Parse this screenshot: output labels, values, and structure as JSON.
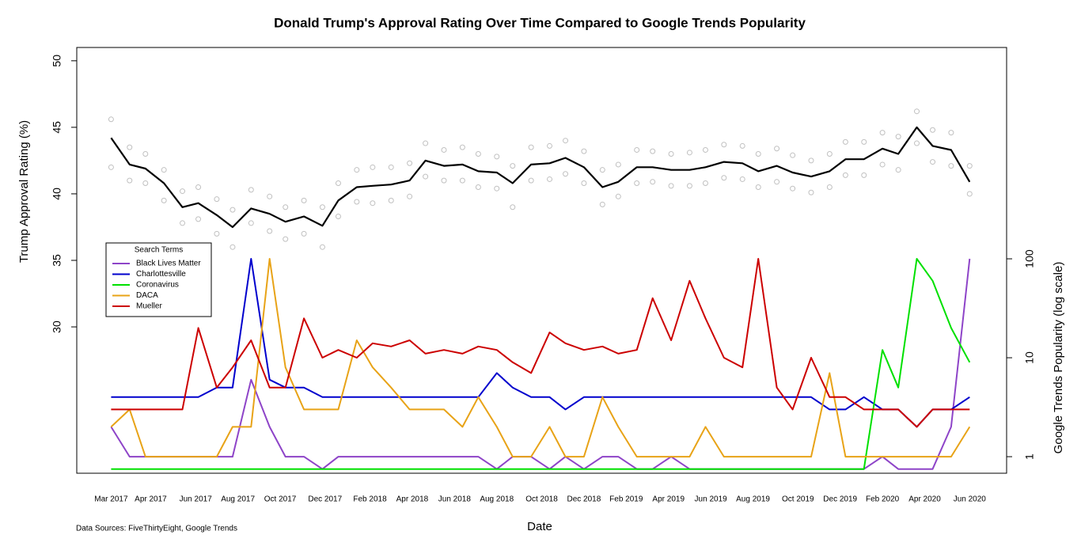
{
  "chart_data": {
    "type": "line",
    "title": "Donald Trump's Approval Rating Over Time Compared to Google Trends Popularity",
    "ylabel": "Trump Approval Rating (%)",
    "y2label": "Google Trends Popularity (log scale)",
    "xlabel": "Date",
    "source": "Data Sources: FiveThirtyEight, Google Trends",
    "legend_title": "Search Terms",
    "legend": "left",
    "xlim": [
      2017.04,
      2020.56
    ],
    "ylim": [
      19,
      51
    ],
    "y2lim": [
      0.68,
      13680
    ],
    "y2log": true,
    "yticks": [
      30,
      35,
      40,
      45,
      50
    ],
    "y2ticks": [
      1,
      10,
      100
    ],
    "xticks": [
      {
        "value": 2017.17,
        "label": "Mar 2017"
      },
      {
        "value": 2017.32,
        "label": "Apr 2017"
      },
      {
        "value": 2017.49,
        "label": "Jun 2017"
      },
      {
        "value": 2017.65,
        "label": "Aug 2017"
      },
      {
        "value": 2017.81,
        "label": "Oct 2017"
      },
      {
        "value": 2017.98,
        "label": "Dec 2017"
      },
      {
        "value": 2018.15,
        "label": "Feb 2018"
      },
      {
        "value": 2018.31,
        "label": "Apr 2018"
      },
      {
        "value": 2018.47,
        "label": "Jun 2018"
      },
      {
        "value": 2018.63,
        "label": "Aug 2018"
      },
      {
        "value": 2018.8,
        "label": "Oct 2018"
      },
      {
        "value": 2018.96,
        "label": "Dec 2018"
      },
      {
        "value": 2019.12,
        "label": "Feb 2019"
      },
      {
        "value": 2019.28,
        "label": "Apr 2019"
      },
      {
        "value": 2019.44,
        "label": "Jun 2019"
      },
      {
        "value": 2019.6,
        "label": "Aug 2019"
      },
      {
        "value": 2019.77,
        "label": "Oct 2019"
      },
      {
        "value": 2019.93,
        "label": "Dec 2019"
      },
      {
        "value": 2020.09,
        "label": "Feb 2020"
      },
      {
        "value": 2020.25,
        "label": "Apr 2020"
      },
      {
        "value": 2020.42,
        "label": "Jun 2020"
      }
    ],
    "x": [
      2017.17,
      2017.24,
      2017.3,
      2017.37,
      2017.44,
      2017.5,
      2017.57,
      2017.63,
      2017.7,
      2017.77,
      2017.83,
      2017.9,
      2017.97,
      2018.03,
      2018.1,
      2018.16,
      2018.23,
      2018.3,
      2018.36,
      2018.43,
      2018.5,
      2018.56,
      2018.63,
      2018.69,
      2018.76,
      2018.83,
      2018.89,
      2018.96,
      2019.03,
      2019.09,
      2019.16,
      2019.22,
      2019.29,
      2019.36,
      2019.42,
      2019.49,
      2019.56,
      2019.62,
      2019.69,
      2019.75,
      2019.82,
      2019.89,
      2019.95,
      2020.02,
      2020.09,
      2020.15,
      2020.22,
      2020.28,
      2020.35,
      2020.42
    ],
    "approval_line": {
      "color": "#000000",
      "axis": "y",
      "values": [
        44.2,
        42.2,
        41.9,
        40.8,
        39.0,
        39.3,
        38.4,
        37.5,
        38.9,
        38.5,
        37.9,
        38.3,
        37.6,
        39.5,
        40.5,
        40.6,
        40.7,
        41.0,
        42.5,
        42.1,
        42.2,
        41.7,
        41.6,
        40.8,
        42.2,
        42.3,
        42.7,
        42.0,
        40.5,
        40.9,
        42.0,
        42.0,
        41.8,
        41.8,
        42.0,
        42.4,
        42.3,
        41.7,
        42.1,
        41.6,
        41.3,
        41.7,
        42.6,
        42.6,
        43.4,
        43.0,
        45.0,
        43.6,
        43.3,
        40.9
      ]
    },
    "approval_points": {
      "color": "#c0c0c0",
      "axis": "y",
      "x": [
        2017.17,
        2017.17,
        2017.24,
        2017.24,
        2017.3,
        2017.3,
        2017.37,
        2017.37,
        2017.44,
        2017.44,
        2017.5,
        2017.5,
        2017.57,
        2017.57,
        2017.63,
        2017.63,
        2017.7,
        2017.7,
        2017.77,
        2017.77,
        2017.83,
        2017.83,
        2017.9,
        2017.9,
        2017.97,
        2017.97,
        2018.03,
        2018.03,
        2018.1,
        2018.1,
        2018.16,
        2018.16,
        2018.23,
        2018.23,
        2018.3,
        2018.3,
        2018.36,
        2018.36,
        2018.43,
        2018.43,
        2018.5,
        2018.5,
        2018.56,
        2018.56,
        2018.63,
        2018.63,
        2018.69,
        2018.69,
        2018.76,
        2018.76,
        2018.83,
        2018.83,
        2018.89,
        2018.89,
        2018.96,
        2018.96,
        2019.03,
        2019.03,
        2019.09,
        2019.09,
        2019.16,
        2019.16,
        2019.22,
        2019.22,
        2019.29,
        2019.29,
        2019.36,
        2019.36,
        2019.42,
        2019.42,
        2019.49,
        2019.49,
        2019.56,
        2019.56,
        2019.62,
        2019.62,
        2019.69,
        2019.69,
        2019.75,
        2019.75,
        2019.82,
        2019.82,
        2019.89,
        2019.89,
        2019.95,
        2019.95,
        2020.02,
        2020.02,
        2020.09,
        2020.09,
        2020.15,
        2020.15,
        2020.22,
        2020.22,
        2020.28,
        2020.28,
        2020.35,
        2020.35,
        2020.42,
        2020.42
      ],
      "values": [
        45.6,
        42.0,
        43.5,
        41.0,
        43.0,
        40.8,
        41.8,
        39.5,
        40.2,
        37.8,
        40.5,
        38.1,
        39.6,
        37.0,
        38.8,
        36.0,
        40.3,
        37.8,
        39.8,
        37.2,
        39.0,
        36.6,
        39.5,
        37.0,
        39.0,
        36.0,
        40.8,
        38.3,
        41.8,
        39.4,
        42.0,
        39.3,
        42.0,
        39.5,
        42.3,
        39.8,
        43.8,
        41.3,
        43.3,
        41.0,
        43.5,
        41.0,
        43.0,
        40.5,
        42.8,
        40.4,
        42.1,
        39.0,
        43.5,
        41.0,
        43.6,
        41.1,
        44.0,
        41.5,
        43.2,
        40.8,
        41.8,
        39.2,
        42.2,
        39.8,
        43.3,
        40.8,
        43.2,
        40.9,
        43.0,
        40.6,
        43.1,
        40.6,
        43.3,
        40.8,
        43.7,
        41.2,
        43.6,
        41.1,
        43.0,
        40.5,
        43.4,
        40.9,
        42.9,
        40.4,
        42.5,
        40.1,
        43.0,
        40.5,
        43.9,
        41.4,
        43.9,
        41.4,
        44.6,
        42.2,
        44.3,
        41.8,
        46.2,
        43.8,
        44.8,
        42.4,
        44.6,
        42.1,
        42.1,
        40.0
      ]
    },
    "series": [
      {
        "name": "Black Lives Matter",
        "color": "#8e44c8",
        "axis": "y2",
        "values": [
          2,
          1,
          1,
          1,
          1,
          1,
          1,
          1,
          6,
          2,
          1,
          1,
          0.75,
          1,
          1,
          1,
          1,
          1,
          1,
          1,
          1,
          1,
          0.75,
          1,
          1,
          0.75,
          1,
          0.75,
          1,
          1,
          0.75,
          0.75,
          1,
          0.75,
          0.75,
          0.75,
          0.75,
          0.75,
          0.75,
          0.75,
          0.75,
          0.75,
          0.75,
          0.75,
          1,
          0.75,
          0.75,
          0.75,
          2,
          100
        ]
      },
      {
        "name": "Charlottesville",
        "color": "#0000cd",
        "axis": "y2",
        "values": [
          4,
          4,
          4,
          4,
          4,
          4,
          5,
          5,
          100,
          6,
          5,
          5,
          4,
          4,
          4,
          4,
          4,
          4,
          4,
          4,
          4,
          4,
          7,
          5,
          4,
          4,
          3,
          4,
          4,
          4,
          4,
          4,
          4,
          4,
          4,
          4,
          4,
          4,
          4,
          4,
          4,
          3,
          3,
          4,
          3,
          3,
          2,
          3,
          3,
          4
        ]
      },
      {
        "name": "Coronavirus",
        "color": "#00e000",
        "axis": "y2",
        "values": [
          0.75,
          0.75,
          0.75,
          0.75,
          0.75,
          0.75,
          0.75,
          0.75,
          0.75,
          0.75,
          0.75,
          0.75,
          0.75,
          0.75,
          0.75,
          0.75,
          0.75,
          0.75,
          0.75,
          0.75,
          0.75,
          0.75,
          0.75,
          0.75,
          0.75,
          0.75,
          0.75,
          0.75,
          0.75,
          0.75,
          0.75,
          0.75,
          0.75,
          0.75,
          0.75,
          0.75,
          0.75,
          0.75,
          0.75,
          0.75,
          0.75,
          0.75,
          0.75,
          0.75,
          12,
          5,
          100,
          60,
          20,
          9
        ]
      },
      {
        "name": "DACA",
        "color": "#e8a317",
        "axis": "y2",
        "values": [
          2,
          3,
          1,
          1,
          1,
          1,
          1,
          2,
          2,
          100,
          8,
          3,
          3,
          3,
          15,
          8,
          5,
          3,
          3,
          3,
          2,
          4,
          2,
          1,
          1,
          2,
          1,
          1,
          4,
          2,
          1,
          1,
          1,
          1,
          2,
          1,
          1,
          1,
          1,
          1,
          1,
          7,
          1,
          1,
          1,
          1,
          1,
          1,
          1,
          2
        ]
      },
      {
        "name": "Mueller",
        "color": "#cc0000",
        "axis": "y2",
        "values": [
          3,
          3,
          3,
          3,
          3,
          20,
          5,
          8,
          15,
          5,
          5,
          25,
          10,
          12,
          10,
          14,
          13,
          15,
          11,
          12,
          11,
          13,
          12,
          9,
          7,
          18,
          14,
          12,
          13,
          11,
          12,
          40,
          15,
          60,
          25,
          10,
          8,
          100,
          5,
          3,
          10,
          4,
          4,
          3,
          3,
          3,
          2,
          3,
          3,
          3
        ]
      }
    ]
  }
}
